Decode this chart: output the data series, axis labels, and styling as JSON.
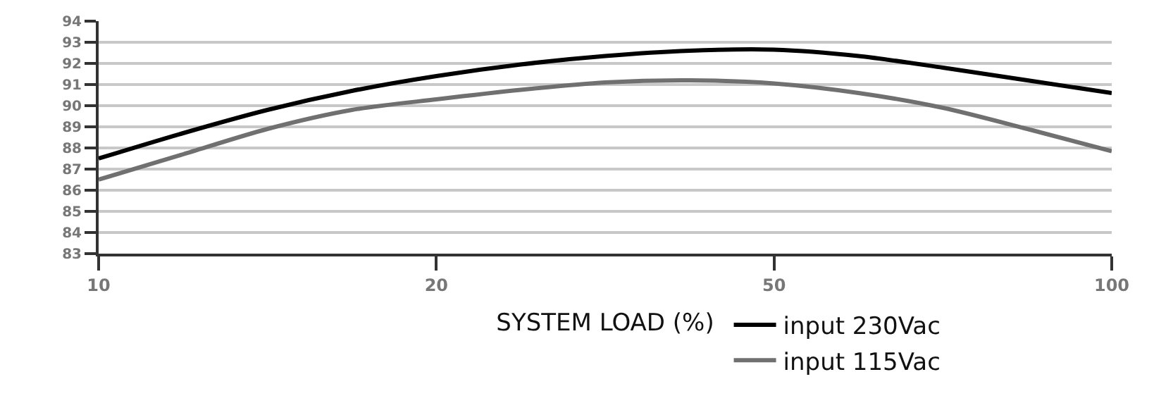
{
  "chart_data": {
    "type": "line",
    "xlabel": "SYSTEM LOAD (%)",
    "categories": [
      "10",
      null,
      null,
      null,
      "20",
      null,
      null,
      null,
      "50",
      null,
      null,
      null,
      "100"
    ],
    "ylim": [
      83,
      94
    ],
    "yticks": [
      83,
      84,
      85,
      86,
      87,
      88,
      89,
      90,
      91,
      92,
      93,
      94
    ],
    "series": [
      {
        "name": "input 230Vac",
        "color": "#000000",
        "values": [
          87.5,
          88.7,
          89.8,
          90.7,
          91.4,
          91.95,
          92.35,
          92.6,
          92.65,
          92.35,
          91.8,
          91.2,
          90.6
        ]
      },
      {
        "name": "input 115Vac",
        "color": "#707070",
        "values": [
          86.5,
          87.7,
          88.9,
          89.8,
          90.3,
          90.75,
          91.1,
          91.2,
          91.05,
          90.6,
          89.9,
          88.9,
          87.85
        ]
      }
    ],
    "grid": "y",
    "legend": "bottom",
    "marker": "none",
    "line_style": "solid"
  }
}
